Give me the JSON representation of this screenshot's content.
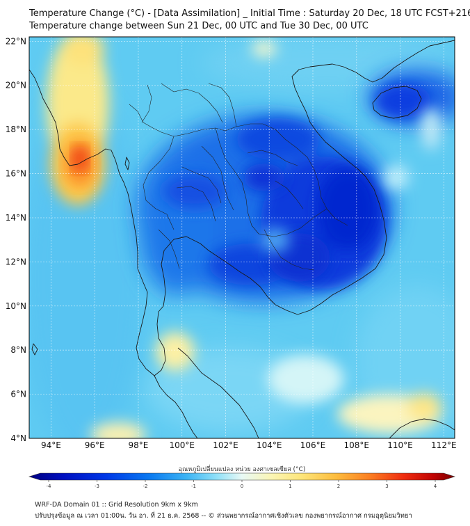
{
  "header": {
    "title": "Temperature Change (°C) - [Data Assimilation] _ Initial Time : Saturday 20 Dec, 18 UTC FCST+216",
    "subtitle": "Temperature change between Sun 21 Dec, 00 UTC and Tue 30 Dec, 00 UTC"
  },
  "map": {
    "lat_labels": [
      "22°N",
      "20°N",
      "18°N",
      "16°N",
      "14°N",
      "12°N",
      "10°N",
      "8°N",
      "6°N",
      "4°N"
    ],
    "lon_labels": [
      "94°E",
      "96°E",
      "98°E",
      "100°E",
      "102°E",
      "104°E",
      "106°E",
      "108°E",
      "110°E",
      "112°E"
    ],
    "extent": {
      "lon_min": 93,
      "lon_max": 112.5,
      "lat_min": 4,
      "lat_max": 22.2
    }
  },
  "colorbar": {
    "label": "อุณหภูมิเปลี่ยนแปลง หน่วย องศาเซลเซียส (°C)",
    "ticks": [
      "-4",
      "-3",
      "-2",
      "-1",
      "0",
      "1",
      "2",
      "3",
      "4"
    ],
    "range": [
      -4,
      4
    ],
    "colors": [
      "#00007f",
      "#0016c8",
      "#0050f0",
      "#2b9cf2",
      "#6fd0f5",
      "#bfeffa",
      "#f4fbe8",
      "#fbf2a6",
      "#fde26c",
      "#fdbb3c",
      "#fb7a22",
      "#ee2a10",
      "#b80000",
      "#7a0000"
    ]
  },
  "footer": {
    "line1": "WRF-DA Domain 01 :: Grid Resolution 9km x 9km",
    "line2": "ปรับปรุงข้อมูล ณ เวลา 01:00น. วัน อา. ที่ 21 ธ.ค. 2568 -- © ส่วนพยากรณ์อากาศเชิงตัวเลข กองพยากรณ์อากาศ กรมอุตุนิยมวิทยา"
  }
}
